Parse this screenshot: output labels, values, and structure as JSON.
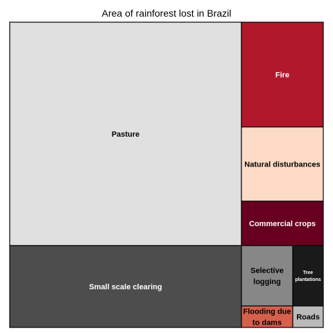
{
  "chart_data": {
    "type": "treemap",
    "title": "Area of rainforest lost in Brazil",
    "items": [
      {
        "label": "Pasture",
        "value": 1110,
        "color": "#e0e0e0",
        "text_color": "#000000"
      },
      {
        "label": "Small scale clearing",
        "value": 380,
        "color": "#4d4d4d",
        "text_color": "#ffffff"
      },
      {
        "label": "Fire",
        "value": 180,
        "color": "#b2182b",
        "text_color": "#ffffff"
      },
      {
        "label": "Natural disturbances",
        "value": 130,
        "color": "#fddbc7",
        "text_color": "#000000"
      },
      {
        "label": "Commercial crops",
        "value": 75,
        "color": "#67001f",
        "text_color": "#ffffff"
      },
      {
        "label": "Selective logging",
        "value": 65,
        "color": "#878787",
        "text_color": "#000000"
      },
      {
        "label": "Tree plantations",
        "value": 35,
        "color": "#1a1a1a",
        "text_color": "#ffffff"
      },
      {
        "label": "Flooding due to dams",
        "value": 25,
        "color": "#d6604d",
        "text_color": "#000000"
      },
      {
        "label": "Roads",
        "value": 12,
        "color": "#bababa",
        "text_color": "#000000"
      }
    ]
  }
}
